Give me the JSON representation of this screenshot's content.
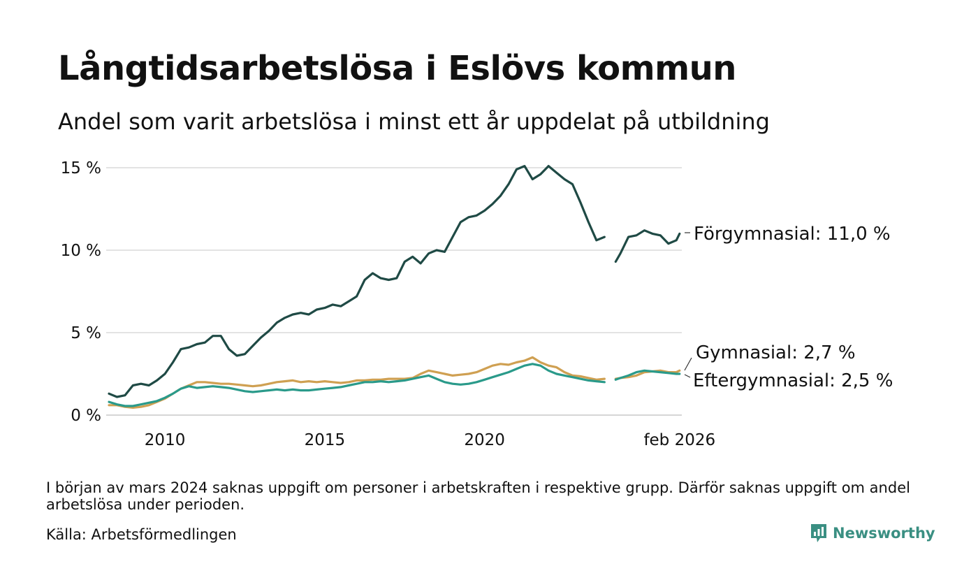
{
  "title": "Långtidsarbetslösa i Eslövs kommun",
  "subtitle": "Andel som varit arbetslösa i minst ett år uppdelat på utbildning",
  "note": "I början av mars 2024 saknas uppgift om personer i arbetskraften i respektive grupp. Därför saknas uppgift om andel arbetslösa under perioden.",
  "source": "Källa: Arbetsförmedlingen",
  "brand": "Newsworthy",
  "chart_data": {
    "type": "line",
    "title": "Långtidsarbetslösa i Eslövs kommun",
    "xlabel": "",
    "ylabel": "",
    "xlim": [
      2008.25,
      2026.17
    ],
    "ylim": [
      0,
      15
    ],
    "grid": true,
    "y_ticks": [
      {
        "value": 0,
        "label": "0 %"
      },
      {
        "value": 5,
        "label": "5 %"
      },
      {
        "value": 10,
        "label": "10 %"
      },
      {
        "value": 15,
        "label": "15 %"
      }
    ],
    "x_ticks": [
      {
        "value": 2010,
        "label": "2010"
      },
      {
        "value": 2015,
        "label": "2015"
      },
      {
        "value": 2020,
        "label": "2020"
      },
      {
        "value": 2026.1,
        "label": "feb 2026"
      }
    ],
    "gap": {
      "from": 2023.75,
      "to": 2024.1
    },
    "series": [
      {
        "name": "Förgymnasial",
        "label": "Förgymnasial: 11,0 %",
        "color": "#1f4a45",
        "points": [
          [
            2008.25,
            1.3
          ],
          [
            2008.5,
            1.1
          ],
          [
            2008.75,
            1.2
          ],
          [
            2009.0,
            1.8
          ],
          [
            2009.25,
            1.9
          ],
          [
            2009.5,
            1.8
          ],
          [
            2009.75,
            2.1
          ],
          [
            2010.0,
            2.5
          ],
          [
            2010.25,
            3.2
          ],
          [
            2010.5,
            4.0
          ],
          [
            2010.75,
            4.1
          ],
          [
            2011.0,
            4.3
          ],
          [
            2011.25,
            4.4
          ],
          [
            2011.5,
            4.8
          ],
          [
            2011.75,
            4.8
          ],
          [
            2012.0,
            4.0
          ],
          [
            2012.25,
            3.6
          ],
          [
            2012.5,
            3.7
          ],
          [
            2012.75,
            4.2
          ],
          [
            2013.0,
            4.7
          ],
          [
            2013.25,
            5.1
          ],
          [
            2013.5,
            5.6
          ],
          [
            2013.75,
            5.9
          ],
          [
            2014.0,
            6.1
          ],
          [
            2014.25,
            6.2
          ],
          [
            2014.5,
            6.1
          ],
          [
            2014.75,
            6.4
          ],
          [
            2015.0,
            6.5
          ],
          [
            2015.25,
            6.7
          ],
          [
            2015.5,
            6.6
          ],
          [
            2015.75,
            6.9
          ],
          [
            2016.0,
            7.2
          ],
          [
            2016.25,
            8.2
          ],
          [
            2016.5,
            8.6
          ],
          [
            2016.75,
            8.3
          ],
          [
            2017.0,
            8.2
          ],
          [
            2017.25,
            8.3
          ],
          [
            2017.5,
            9.3
          ],
          [
            2017.75,
            9.6
          ],
          [
            2018.0,
            9.2
          ],
          [
            2018.25,
            9.8
          ],
          [
            2018.5,
            10.0
          ],
          [
            2018.75,
            9.9
          ],
          [
            2019.0,
            10.8
          ],
          [
            2019.25,
            11.7
          ],
          [
            2019.5,
            12.0
          ],
          [
            2019.75,
            12.1
          ],
          [
            2020.0,
            12.4
          ],
          [
            2020.25,
            12.8
          ],
          [
            2020.5,
            13.3
          ],
          [
            2020.75,
            14.0
          ],
          [
            2021.0,
            14.9
          ],
          [
            2021.25,
            15.1
          ],
          [
            2021.5,
            14.3
          ],
          [
            2021.75,
            14.6
          ],
          [
            2022.0,
            15.1
          ],
          [
            2022.25,
            14.7
          ],
          [
            2022.5,
            14.3
          ],
          [
            2022.75,
            14.0
          ],
          [
            2023.0,
            12.9
          ],
          [
            2023.25,
            11.7
          ],
          [
            2023.5,
            10.6
          ],
          [
            2023.75,
            10.8
          ],
          [
            2024.1,
            9.3
          ],
          [
            2024.25,
            9.8
          ],
          [
            2024.5,
            10.8
          ],
          [
            2024.75,
            10.9
          ],
          [
            2025.0,
            11.2
          ],
          [
            2025.25,
            11.0
          ],
          [
            2025.5,
            10.9
          ],
          [
            2025.75,
            10.4
          ],
          [
            2026.0,
            10.6
          ],
          [
            2026.1,
            11.0
          ]
        ]
      },
      {
        "name": "Gymnasial",
        "label": "Gymnasial:  2,7 %",
        "color": "#cfa052",
        "points": [
          [
            2008.25,
            0.6
          ],
          [
            2008.5,
            0.6
          ],
          [
            2008.75,
            0.5
          ],
          [
            2009.0,
            0.45
          ],
          [
            2009.25,
            0.5
          ],
          [
            2009.5,
            0.6
          ],
          [
            2009.75,
            0.8
          ],
          [
            2010.0,
            1.0
          ],
          [
            2010.25,
            1.3
          ],
          [
            2010.5,
            1.6
          ],
          [
            2010.75,
            1.8
          ],
          [
            2011.0,
            2.0
          ],
          [
            2011.25,
            2.0
          ],
          [
            2011.5,
            1.95
          ],
          [
            2011.75,
            1.9
          ],
          [
            2012.0,
            1.9
          ],
          [
            2012.25,
            1.85
          ],
          [
            2012.5,
            1.8
          ],
          [
            2012.75,
            1.75
          ],
          [
            2013.0,
            1.8
          ],
          [
            2013.25,
            1.9
          ],
          [
            2013.5,
            2.0
          ],
          [
            2013.75,
            2.05
          ],
          [
            2014.0,
            2.1
          ],
          [
            2014.25,
            2.0
          ],
          [
            2014.5,
            2.05
          ],
          [
            2014.75,
            2.0
          ],
          [
            2015.0,
            2.05
          ],
          [
            2015.25,
            2.0
          ],
          [
            2015.5,
            1.95
          ],
          [
            2015.75,
            2.0
          ],
          [
            2016.0,
            2.1
          ],
          [
            2016.25,
            2.1
          ],
          [
            2016.5,
            2.15
          ],
          [
            2016.75,
            2.15
          ],
          [
            2017.0,
            2.2
          ],
          [
            2017.25,
            2.2
          ],
          [
            2017.5,
            2.2
          ],
          [
            2017.75,
            2.25
          ],
          [
            2018.0,
            2.5
          ],
          [
            2018.25,
            2.7
          ],
          [
            2018.5,
            2.6
          ],
          [
            2018.75,
            2.5
          ],
          [
            2019.0,
            2.4
          ],
          [
            2019.25,
            2.45
          ],
          [
            2019.5,
            2.5
          ],
          [
            2019.75,
            2.6
          ],
          [
            2020.0,
            2.8
          ],
          [
            2020.25,
            3.0
          ],
          [
            2020.5,
            3.1
          ],
          [
            2020.75,
            3.05
          ],
          [
            2021.0,
            3.2
          ],
          [
            2021.25,
            3.3
          ],
          [
            2021.5,
            3.5
          ],
          [
            2021.75,
            3.2
          ],
          [
            2022.0,
            3.0
          ],
          [
            2022.25,
            2.9
          ],
          [
            2022.5,
            2.6
          ],
          [
            2022.75,
            2.4
          ],
          [
            2023.0,
            2.35
          ],
          [
            2023.25,
            2.25
          ],
          [
            2023.5,
            2.15
          ],
          [
            2023.75,
            2.2
          ],
          [
            2024.1,
            2.2
          ],
          [
            2024.25,
            2.25
          ],
          [
            2024.5,
            2.3
          ],
          [
            2024.75,
            2.4
          ],
          [
            2025.0,
            2.6
          ],
          [
            2025.25,
            2.65
          ],
          [
            2025.5,
            2.7
          ],
          [
            2025.75,
            2.6
          ],
          [
            2026.0,
            2.6
          ],
          [
            2026.1,
            2.7
          ]
        ]
      },
      {
        "name": "Eftergymnasial",
        "label": "Eftergymnasial:  2,5 %",
        "color": "#2a9a8a",
        "points": [
          [
            2008.25,
            0.8
          ],
          [
            2008.5,
            0.65
          ],
          [
            2008.75,
            0.55
          ],
          [
            2009.0,
            0.55
          ],
          [
            2009.25,
            0.65
          ],
          [
            2009.5,
            0.75
          ],
          [
            2009.75,
            0.85
          ],
          [
            2010.0,
            1.05
          ],
          [
            2010.25,
            1.3
          ],
          [
            2010.5,
            1.6
          ],
          [
            2010.75,
            1.75
          ],
          [
            2011.0,
            1.65
          ],
          [
            2011.25,
            1.7
          ],
          [
            2011.5,
            1.75
          ],
          [
            2011.75,
            1.7
          ],
          [
            2012.0,
            1.65
          ],
          [
            2012.25,
            1.55
          ],
          [
            2012.5,
            1.45
          ],
          [
            2012.75,
            1.4
          ],
          [
            2013.0,
            1.45
          ],
          [
            2013.25,
            1.5
          ],
          [
            2013.5,
            1.55
          ],
          [
            2013.75,
            1.5
          ],
          [
            2014.0,
            1.55
          ],
          [
            2014.25,
            1.5
          ],
          [
            2014.5,
            1.5
          ],
          [
            2014.75,
            1.55
          ],
          [
            2015.0,
            1.6
          ],
          [
            2015.25,
            1.65
          ],
          [
            2015.5,
            1.7
          ],
          [
            2015.75,
            1.8
          ],
          [
            2016.0,
            1.9
          ],
          [
            2016.25,
            2.0
          ],
          [
            2016.5,
            2.0
          ],
          [
            2016.75,
            2.05
          ],
          [
            2017.0,
            2.0
          ],
          [
            2017.25,
            2.05
          ],
          [
            2017.5,
            2.1
          ],
          [
            2017.75,
            2.2
          ],
          [
            2018.0,
            2.3
          ],
          [
            2018.25,
            2.4
          ],
          [
            2018.5,
            2.2
          ],
          [
            2018.75,
            2.0
          ],
          [
            2019.0,
            1.9
          ],
          [
            2019.25,
            1.85
          ],
          [
            2019.5,
            1.9
          ],
          [
            2019.75,
            2.0
          ],
          [
            2020.0,
            2.15
          ],
          [
            2020.25,
            2.3
          ],
          [
            2020.5,
            2.45
          ],
          [
            2020.75,
            2.6
          ],
          [
            2021.0,
            2.8
          ],
          [
            2021.25,
            3.0
          ],
          [
            2021.5,
            3.1
          ],
          [
            2021.75,
            3.0
          ],
          [
            2022.0,
            2.7
          ],
          [
            2022.25,
            2.5
          ],
          [
            2022.5,
            2.4
          ],
          [
            2022.75,
            2.3
          ],
          [
            2023.0,
            2.2
          ],
          [
            2023.25,
            2.1
          ],
          [
            2023.5,
            2.05
          ],
          [
            2023.75,
            2.0
          ],
          [
            2024.1,
            2.15
          ],
          [
            2024.25,
            2.25
          ],
          [
            2024.5,
            2.4
          ],
          [
            2024.75,
            2.6
          ],
          [
            2025.0,
            2.7
          ],
          [
            2025.25,
            2.65
          ],
          [
            2025.5,
            2.6
          ],
          [
            2025.75,
            2.55
          ],
          [
            2026.0,
            2.5
          ],
          [
            2026.1,
            2.5
          ]
        ]
      }
    ]
  }
}
